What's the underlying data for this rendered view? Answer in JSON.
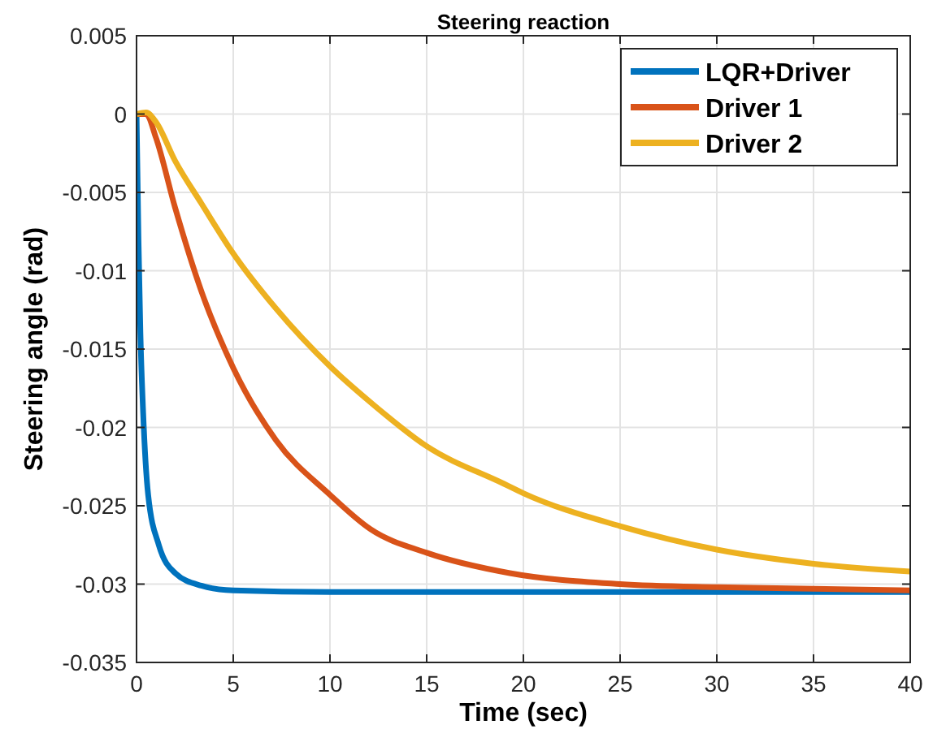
{
  "chart_data": {
    "type": "line",
    "title": "Steering reaction",
    "xlabel": "Time (sec)",
    "ylabel": "Steering angle (rad)",
    "xlim": [
      0,
      40
    ],
    "xticks": [
      0,
      5,
      10,
      15,
      20,
      25,
      30,
      35,
      40
    ],
    "ylim": [
      -0.035,
      0.005
    ],
    "yticks": [
      -0.035,
      -0.03,
      -0.025,
      -0.02,
      -0.015,
      -0.01,
      -0.005,
      0,
      0.005
    ],
    "grid": true,
    "legend": "top right",
    "marker": "none",
    "line_style": "solid",
    "series": [
      {
        "name": "LQR+Driver",
        "color": "#0072bd",
        "x": [
          0,
          0.1,
          0.2,
          0.33,
          0.6,
          1.15,
          2,
          3.35,
          5,
          10,
          20,
          30,
          40
        ],
        "values": [
          0,
          -0.008,
          -0.014,
          -0.0187,
          -0.0243,
          -0.0275,
          -0.0293,
          -0.0301,
          -0.0304,
          -0.0305,
          -0.0305,
          -0.0305,
          -0.0305
        ]
      },
      {
        "name": "Driver 1",
        "color": "#d95319",
        "x": [
          0,
          0.5,
          1,
          2,
          3.35,
          5,
          7.2,
          10,
          12.1,
          15,
          19.3,
          25,
          30,
          35,
          40
        ],
        "values": [
          0,
          0,
          -0.0015,
          -0.006,
          -0.0113,
          -0.0162,
          -0.0208,
          -0.0243,
          -0.0265,
          -0.028,
          -0.0293,
          -0.03,
          -0.0302,
          -0.0303,
          -0.0304
        ]
      },
      {
        "name": "Driver 2",
        "color": "#edb120",
        "x": [
          0,
          0.5,
          1,
          2,
          3.35,
          5,
          7.2,
          10,
          12.1,
          15,
          19,
          20,
          25,
          30,
          35,
          40
        ],
        "values": [
          0,
          0.0001,
          -0.0005,
          -0.003,
          -0.0057,
          -0.0089,
          -0.0124,
          -0.0161,
          -0.0184,
          -0.0212,
          -0.0236,
          -0.0242,
          -0.0263,
          -0.0278,
          -0.0287,
          -0.0292
        ]
      }
    ]
  }
}
